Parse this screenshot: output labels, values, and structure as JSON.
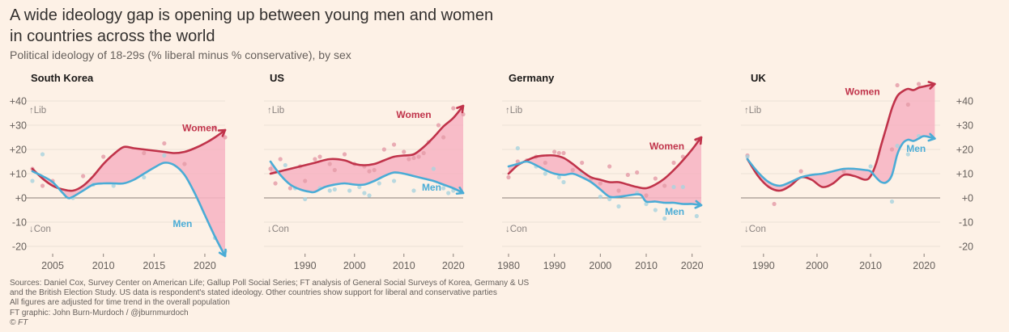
{
  "header": {
    "title_line1": "A wide ideology gap is opening up between young men and women",
    "title_line2": "in countries across the world",
    "subtitle": "Political ideology of 18-29s (% liberal minus % conservative), by sex"
  },
  "colors": {
    "background": "#fdf1e6",
    "women": "#c0334a",
    "men": "#4aacd6",
    "gap_fill": "#f7b3c2",
    "gridline": "#ece1d7",
    "zero_line": "#8a7f78",
    "axis_text": "#66605c"
  },
  "axis_annotations": {
    "up": "↑Lib",
    "down": "↓Con"
  },
  "footer": {
    "lines": [
      "Sources: Daniel Cox, Survey Center on American Life; Gallup Poll Social Series; FT analysis of General Social Surveys of Korea, Germany & US",
      "and the British Election Study. US data is respondent's stated ideology. Other countries show support for liberal and conservative parties",
      "All figures are adjusted for time trend in the overall population",
      "FT graphic: John Burn-Murdoch / @jburnmurdoch",
      "© FT"
    ]
  },
  "chart_data": [
    {
      "type": "line",
      "title": "South Korea",
      "xlabel": "",
      "ylabel": "% liberal minus % conservative",
      "xlim": [
        2003,
        2022
      ],
      "ylim": [
        -20,
        40
      ],
      "yticks": [
        40,
        30,
        20,
        10,
        0,
        -10,
        -20
      ],
      "ytick_labels": [
        "+40",
        "+30",
        "+20",
        "+10",
        "+0",
        "-10",
        "-20"
      ],
      "y_axis_side": "left",
      "xticks": [
        2005,
        2010,
        2015,
        2020
      ],
      "grid": true,
      "series": [
        {
          "name": "Women",
          "x": [
            2003,
            2004,
            2005,
            2006,
            2007,
            2008,
            2009,
            2010,
            2011,
            2012,
            2013,
            2014,
            2015,
            2016,
            2017,
            2018,
            2019,
            2020,
            2021,
            2022
          ],
          "values": [
            12,
            8,
            5,
            3.5,
            3,
            5,
            9,
            14,
            18,
            21,
            20.5,
            20,
            19.5,
            19,
            18.5,
            19,
            20.5,
            22.5,
            25,
            28
          ]
        },
        {
          "name": "Men",
          "x": [
            2003,
            2004,
            2005,
            2006,
            2006.5,
            2007,
            2008,
            2009,
            2010,
            2011,
            2012,
            2013,
            2014,
            2015,
            2016,
            2017,
            2018,
            2019,
            2020,
            2021,
            2022
          ],
          "values": [
            11,
            9,
            6.5,
            2,
            0,
            0.5,
            3,
            5.5,
            6,
            6,
            6,
            7.5,
            10,
            12.5,
            14.5,
            13.5,
            9.5,
            2,
            -7,
            -16,
            -24
          ]
        }
      ],
      "scatter": {
        "women": [
          [
            2003,
            12
          ],
          [
            2004,
            5
          ],
          [
            2005,
            7
          ],
          [
            2008,
            9
          ],
          [
            2010,
            17
          ],
          [
            2014,
            18.5
          ],
          [
            2016,
            22.5
          ],
          [
            2018,
            14
          ],
          [
            2021,
            29
          ],
          [
            2022,
            25
          ]
        ],
        "men": [
          [
            2003,
            7
          ],
          [
            2004,
            18
          ],
          [
            2007,
            0
          ],
          [
            2009,
            5.5
          ],
          [
            2011,
            5
          ],
          [
            2014,
            8.5
          ],
          [
            2016,
            17.5
          ],
          [
            2021,
            -16.5
          ],
          [
            2022,
            -22
          ]
        ]
      },
      "labels": {
        "women": "Women",
        "men": "Men"
      }
    },
    {
      "type": "line",
      "title": "US",
      "xlim": [
        1983,
        2022
      ],
      "ylim": [
        -20,
        40
      ],
      "yticks": [
        40,
        30,
        20,
        10,
        0,
        -10,
        -20
      ],
      "ytick_labels": [],
      "y_axis_side": "none",
      "xticks": [
        1990,
        2000,
        2010,
        2020
      ],
      "grid": true,
      "series": [
        {
          "name": "Women",
          "x": [
            1983,
            1986,
            1989,
            1992,
            1995,
            1998,
            2000,
            2002,
            2004,
            2006,
            2008,
            2010,
            2012,
            2014,
            2016,
            2018,
            2020,
            2022
          ],
          "values": [
            10,
            11.5,
            13,
            14.5,
            16,
            15.5,
            14,
            13.5,
            14,
            15.5,
            17,
            17.5,
            18,
            21,
            25,
            29.5,
            33,
            38
          ]
        },
        {
          "name": "Men",
          "x": [
            1983,
            1985,
            1987,
            1989,
            1991,
            1992,
            1994,
            1996,
            1998,
            2000,
            2002,
            2004,
            2006,
            2008,
            2010,
            2012,
            2014,
            2016,
            2018,
            2020,
            2022
          ],
          "values": [
            15,
            9.5,
            5.5,
            3.5,
            2.5,
            2.5,
            4.5,
            5.5,
            6,
            5.5,
            5.5,
            7,
            9,
            10.5,
            10,
            9,
            8,
            7,
            5.5,
            4,
            2
          ]
        }
      ],
      "scatter": {
        "women": [
          [
            1983,
            12
          ],
          [
            1984,
            6
          ],
          [
            1985,
            16
          ],
          [
            1987,
            4
          ],
          [
            1989,
            13
          ],
          [
            1990,
            7
          ],
          [
            1992,
            16
          ],
          [
            1993,
            17
          ],
          [
            1995,
            14
          ],
          [
            1996,
            11.5
          ],
          [
            1998,
            18
          ],
          [
            2000,
            14
          ],
          [
            2002,
            13
          ],
          [
            2003,
            11
          ],
          [
            2004,
            11.5
          ],
          [
            2006,
            20
          ],
          [
            2008,
            22
          ],
          [
            2010,
            19
          ],
          [
            2011,
            16
          ],
          [
            2012,
            16.5
          ],
          [
            2013,
            17
          ],
          [
            2014,
            18.5
          ],
          [
            2015,
            23
          ],
          [
            2017,
            30
          ],
          [
            2018,
            25
          ],
          [
            2020,
            37
          ],
          [
            2022,
            34.5
          ]
        ],
        "men": [
          [
            1986,
            13.5
          ],
          [
            1988,
            4
          ],
          [
            1990,
            -0.5
          ],
          [
            1993,
            4
          ],
          [
            1995,
            3
          ],
          [
            1996,
            3.5
          ],
          [
            1999,
            3
          ],
          [
            2001,
            4.5
          ],
          [
            2002,
            2
          ],
          [
            2003,
            1
          ],
          [
            2005,
            6
          ],
          [
            2008,
            7
          ],
          [
            2012,
            3
          ],
          [
            2016,
            12
          ],
          [
            2018,
            4
          ],
          [
            2019,
            2
          ],
          [
            2020,
            3
          ]
        ]
      },
      "labels": {
        "women": "Women",
        "men": "Men"
      }
    },
    {
      "type": "line",
      "title": "Germany",
      "xlim": [
        1980,
        2022
      ],
      "ylim": [
        -20,
        40
      ],
      "yticks": [
        40,
        30,
        20,
        10,
        0,
        -10,
        -20
      ],
      "ytick_labels": [],
      "y_axis_side": "none",
      "xticks": [
        1980,
        1990,
        2000,
        2010,
        2020
      ],
      "grid": true,
      "series": [
        {
          "name": "Women",
          "x": [
            1980,
            1982,
            1984,
            1986,
            1988,
            1990,
            1992,
            1994,
            1996,
            1998,
            2000,
            2002,
            2004,
            2006,
            2008,
            2010,
            2012,
            2014,
            2016,
            2018,
            2020,
            2022
          ],
          "values": [
            10,
            13.5,
            15.5,
            17,
            17.5,
            17.5,
            16.5,
            14,
            11,
            8.5,
            7.5,
            6.5,
            6.5,
            5.5,
            4.5,
            4,
            5.5,
            8,
            11.5,
            15.5,
            20,
            25
          ]
        },
        {
          "name": "Men",
          "x": [
            1980,
            1982,
            1984,
            1986,
            1988,
            1990,
            1992,
            1994,
            1996,
            1998,
            2000,
            2002,
            2004,
            2006,
            2008,
            2009,
            2010,
            2012,
            2014,
            2016,
            2018,
            2020,
            2022
          ],
          "values": [
            13,
            14,
            15,
            13.5,
            11.5,
            10,
            9.5,
            10,
            8.5,
            6.5,
            3.5,
            0.5,
            0.5,
            1,
            1.5,
            1,
            -1.5,
            -1.5,
            -2,
            -2,
            -2.5,
            -2.5,
            -3
          ]
        }
      ],
      "scatter": {
        "women": [
          [
            1980,
            8.5
          ],
          [
            1982,
            15
          ],
          [
            1984,
            15.5
          ],
          [
            1986,
            17
          ],
          [
            1988,
            14.5
          ],
          [
            1990,
            19
          ],
          [
            1991,
            18.5
          ],
          [
            1992,
            18.5
          ],
          [
            1994,
            11.5
          ],
          [
            1996,
            14.5
          ],
          [
            1998,
            8
          ],
          [
            2000,
            6
          ],
          [
            2002,
            13
          ],
          [
            2004,
            3
          ],
          [
            2006,
            9.5
          ],
          [
            2008,
            10.5
          ],
          [
            2010,
            1
          ],
          [
            2012,
            8
          ],
          [
            2014,
            5
          ],
          [
            2016,
            14.5
          ],
          [
            2018,
            17
          ],
          [
            2021,
            24
          ]
        ],
        "men": [
          [
            1982,
            20.5
          ],
          [
            1986,
            13
          ],
          [
            1988,
            10
          ],
          [
            1991,
            8.5
          ],
          [
            1992,
            6.5
          ],
          [
            1996,
            10.5
          ],
          [
            2000,
            0.5
          ],
          [
            2002,
            -0.5
          ],
          [
            2004,
            -3.5
          ],
          [
            2008,
            2
          ],
          [
            2010,
            -2.5
          ],
          [
            2012,
            -5
          ],
          [
            2014,
            -8.5
          ],
          [
            2016,
            4.5
          ],
          [
            2018,
            4.5
          ],
          [
            2021,
            -7.5
          ]
        ]
      },
      "labels": {
        "women": "Women",
        "men": "Men"
      }
    },
    {
      "type": "line",
      "title": "UK",
      "xlim": [
        1987,
        2023
      ],
      "ylim": [
        -20,
        40
      ],
      "yticks": [
        40,
        30,
        20,
        10,
        0,
        -10,
        -20
      ],
      "ytick_labels": [
        "+40",
        "+30",
        "+20",
        "+10",
        "+0",
        "-10",
        "-20"
      ],
      "y_axis_side": "right",
      "xticks": [
        1990,
        2000,
        2010,
        2020
      ],
      "grid": true,
      "series": [
        {
          "name": "Women",
          "x": [
            1987,
            1989,
            1991,
            1993,
            1995,
            1997,
            1999,
            2001,
            2003,
            2005,
            2007,
            2009,
            2010,
            2011,
            2012,
            2013,
            2014,
            2015,
            2016,
            2017,
            2018,
            2019,
            2020,
            2022
          ],
          "values": [
            16,
            9,
            4.5,
            3,
            5,
            8.5,
            7.5,
            4.5,
            6,
            9.5,
            9,
            7.5,
            9,
            14,
            22,
            29.5,
            37,
            42,
            44,
            45,
            44.5,
            45.5,
            46,
            47
          ]
        },
        {
          "name": "Men",
          "x": [
            1987,
            1989,
            1991,
            1993,
            1995,
            1997,
            1999,
            2001,
            2003,
            2005,
            2007,
            2009,
            2010,
            2011,
            2012,
            2013,
            2014,
            2015,
            2016,
            2017,
            2018,
            2019,
            2020,
            2022
          ],
          "values": [
            16,
            10.5,
            6.5,
            5,
            6.5,
            8.5,
            9.5,
            10,
            11,
            12,
            12,
            11.5,
            11,
            8.5,
            6.5,
            6.5,
            9.5,
            18,
            22.5,
            24,
            23.5,
            24.5,
            25.5,
            24.5
          ]
        }
      ],
      "scatter": {
        "women": [
          [
            1987,
            17.5
          ],
          [
            1992,
            -2.5
          ],
          [
            1997,
            11
          ],
          [
            2005,
            11
          ],
          [
            2014,
            20
          ],
          [
            2015,
            46.5
          ],
          [
            2017,
            38.5
          ],
          [
            2019,
            47
          ]
        ],
        "men": [
          [
            1987,
            17
          ],
          [
            2010,
            13
          ],
          [
            2014,
            -1.5
          ],
          [
            2015,
            21.5
          ],
          [
            2017,
            18
          ],
          [
            2019,
            25.5
          ]
        ]
      },
      "labels": {
        "women": "Women",
        "men": "Men"
      }
    }
  ]
}
